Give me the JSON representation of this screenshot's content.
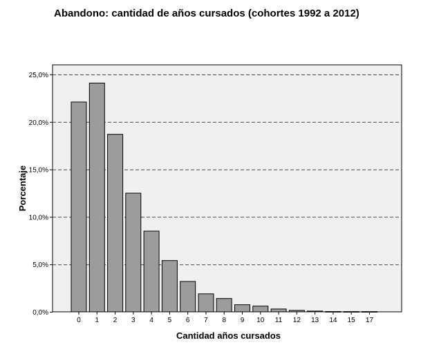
{
  "chart_data": {
    "type": "bar",
    "title": "Abandono: cantidad de años cursados (cohortes 1992 a 2012)",
    "xlabel": "Cantidad años cursados",
    "ylabel": "Porcentaje",
    "categories": [
      "0",
      "1",
      "2",
      "3",
      "4",
      "5",
      "6",
      "7",
      "8",
      "9",
      "10",
      "11",
      "12",
      "13",
      "14",
      "15",
      "17"
    ],
    "values": [
      22.1,
      24.1,
      18.7,
      12.5,
      8.5,
      5.4,
      3.2,
      1.9,
      1.4,
      0.75,
      0.6,
      0.3,
      0.15,
      0.08,
      0.03,
      0.02,
      0.02
    ],
    "ylim": [
      0,
      25
    ],
    "yticks": [
      "0,0%",
      "5,0%",
      "10,0%",
      "15,0%",
      "20,0%",
      "25,0%"
    ],
    "grid": "horizontal-dashed",
    "colors": {
      "bar_fill": "#9c9c9c",
      "bar_stroke": "#000000",
      "plot_background": "#f0f0f0",
      "grid": "#444444"
    }
  }
}
